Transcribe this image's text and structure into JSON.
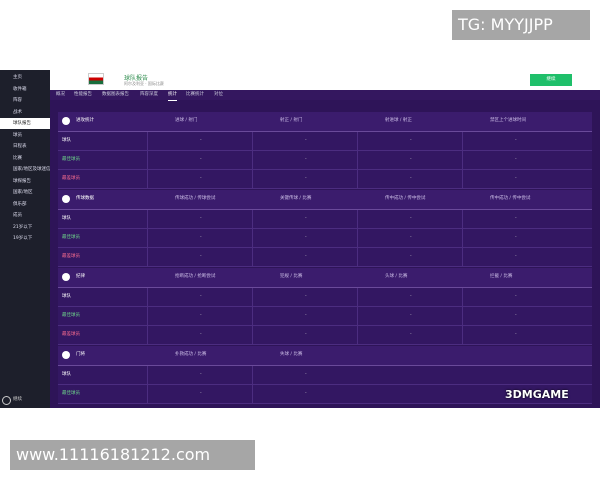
{
  "watermark_top": "TG: MYYJJPP",
  "watermark_bottom": "www.11116181212.com",
  "logo": "3DMGAME",
  "sidebar": {
    "items": [
      "主页",
      "收件箱",
      "阵容",
      "战术",
      "球队报告",
      "球员",
      "日程表",
      "比赛",
      "国家/地区及球迷信息",
      "球探报告",
      "国家/地区",
      "俱乐部",
      "成员",
      "21岁以下",
      "19岁以下"
    ],
    "footer": "继续"
  },
  "header": {
    "title": "球队报告",
    "subtitle": "阿尔及利亚 · 国际比赛",
    "button": "继续"
  },
  "tabs": [
    "概况",
    "性能报告",
    "数据图表报告",
    "阵容深度",
    "统计",
    "比赛统计",
    "对位"
  ],
  "active_tab": 4,
  "sections": [
    {
      "title": "进攻统计",
      "columns": [
        "进球 / 射门",
        "射正 / 射门",
        "射进球 / 射正",
        "禁区上个进球时间"
      ],
      "rows": [
        {
          "label": "球队",
          "cells": [
            "-",
            "-",
            "-",
            "-"
          ]
        },
        {
          "label": "最佳球员",
          "cells": [
            "-",
            "-",
            "-",
            "-"
          ]
        },
        {
          "label": "最差球员",
          "cells": [
            "-",
            "-",
            "-",
            "-"
          ]
        }
      ]
    },
    {
      "title": "传球数据",
      "columns": [
        "传球成功 / 传球尝试",
        "关键传球 / 比赛",
        "传中成功 / 传中尝试",
        "传中成功 / 传中尝试"
      ],
      "rows": [
        {
          "label": "球队",
          "cells": [
            "-",
            "-",
            "-",
            "-"
          ]
        },
        {
          "label": "最佳球员",
          "cells": [
            "-",
            "-",
            "-",
            "-"
          ]
        },
        {
          "label": "最差球员",
          "cells": [
            "-",
            "-",
            "-",
            "-"
          ]
        }
      ]
    },
    {
      "title": "纪律",
      "columns": [
        "抢断成功 / 抢断尝试",
        "犯规 / 比赛",
        "头球 / 比赛",
        "拦截 / 比赛"
      ],
      "rows": [
        {
          "label": "球队",
          "cells": [
            "-",
            "-",
            "-",
            "-"
          ]
        },
        {
          "label": "最佳球员",
          "cells": [
            "-",
            "-",
            "-",
            "-"
          ]
        },
        {
          "label": "最差球员",
          "cells": [
            "-",
            "-",
            "-",
            "-"
          ]
        }
      ]
    },
    {
      "title": "门将",
      "columns": [
        "扑救成功 / 比赛",
        "失球 / 比赛"
      ],
      "rows": [
        {
          "label": "球队",
          "cells": [
            "-",
            "-"
          ]
        },
        {
          "label": "最佳球员",
          "cells": [
            "-",
            "-"
          ]
        }
      ]
    }
  ]
}
